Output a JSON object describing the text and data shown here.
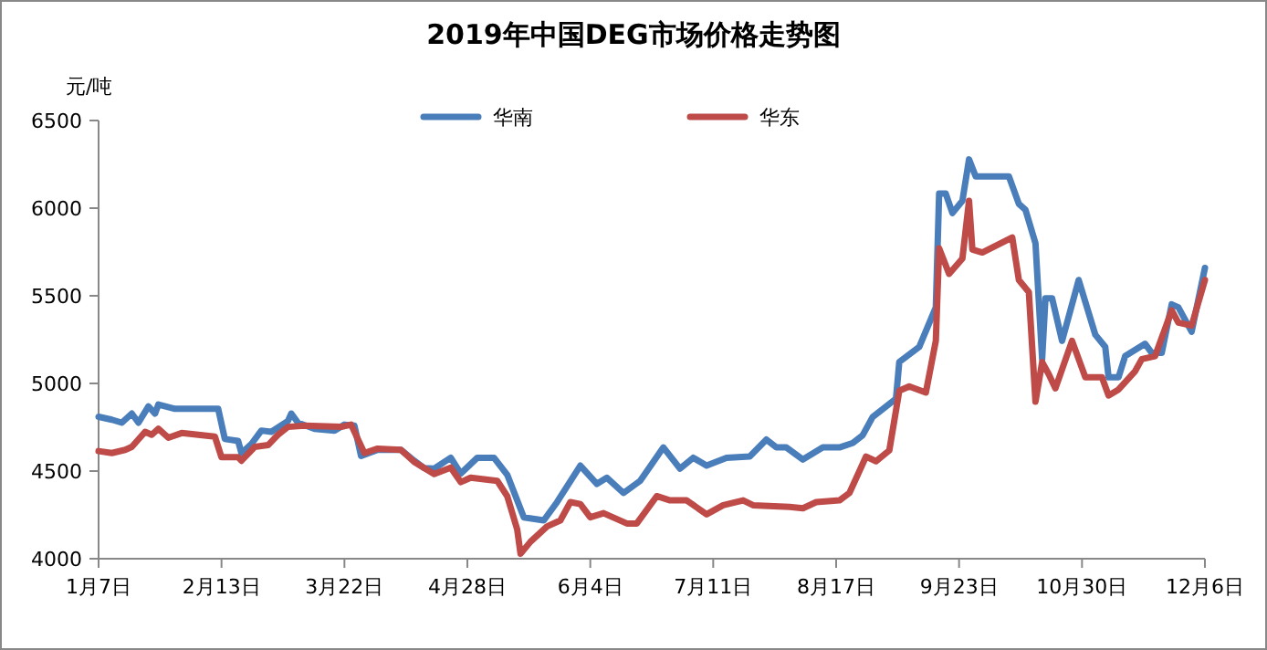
{
  "chart_data": {
    "type": "line",
    "title": "2019年中国DEG市场价格走势图",
    "ylabel": "元/吨",
    "legend": "top",
    "grid": false,
    "marker": "none",
    "line_style": "solid",
    "xlim": [
      "--01-07",
      "--12-06"
    ],
    "xticks": [
      {
        "value": "--01-07",
        "label": "1月7日"
      },
      {
        "value": "--02-13",
        "label": "2月13日"
      },
      {
        "value": "--03-22",
        "label": "3月22日"
      },
      {
        "value": "--04-28",
        "label": "4月28日"
      },
      {
        "value": "--06-04",
        "label": "6月4日"
      },
      {
        "value": "--07-11",
        "label": "7月11日"
      },
      {
        "value": "--08-17",
        "label": "8月17日"
      },
      {
        "value": "--09-23",
        "label": "9月23日"
      },
      {
        "value": "--10-30",
        "label": "10月30日"
      },
      {
        "value": "--12-06",
        "label": "12月6日"
      }
    ],
    "ylim": [
      4000,
      6500
    ],
    "yticks": [
      4000,
      4500,
      5000,
      5500,
      6000,
      6500
    ],
    "series": [
      {
        "name": "华南",
        "color": "#4a7ebb",
        "x": [
          "--01-07",
          "--01-11",
          "--01-14",
          "--01-17",
          "--01-19",
          "--01-22",
          "--01-24",
          "--01-25",
          "--01-30",
          "--02-12",
          "--02-14",
          "--02-18",
          "--02-19",
          "--02-22",
          "--02-25",
          "--02-28",
          "--03-05",
          "--03-06",
          "--03-08",
          "--03-13",
          "--03-19",
          "--03-22",
          "--03-25",
          "--03-27",
          "--04-01",
          "--04-08",
          "--04-12",
          "--04-15",
          "--04-18",
          "--04-23",
          "--04-26",
          "--05-01",
          "--05-06",
          "--05-10",
          "--05-15",
          "--05-21",
          "--05-25",
          "--06-01",
          "--06-06",
          "--06-09",
          "--06-14",
          "--06-19",
          "--06-26",
          "--07-01",
          "--07-05",
          "--07-09",
          "--07-15",
          "--07-22",
          "--07-27",
          "--07-30",
          "--08-02",
          "--08-07",
          "--08-13",
          "--08-18",
          "--08-22",
          "--08-25",
          "--08-28",
          "--09-04",
          "--09-05",
          "--09-11",
          "--09-16",
          "--09-17",
          "--09-19",
          "--09-21",
          "--09-24",
          "--09-26",
          "--09-28",
          "--10-08",
          "--10-11",
          "--10-13",
          "--10-16",
          "--10-18",
          "--10-19",
          "--10-21",
          "--10-24",
          "--10-29",
          "--11-03",
          "--11-06",
          "--11-07",
          "--11-10",
          "--11-12",
          "--11-18",
          "--11-20",
          "--11-23",
          "--11-26",
          "--11-28",
          "--12-01",
          "--12-02",
          "--12-06"
        ],
        "values": [
          4810,
          4793,
          4776,
          4828,
          4776,
          4869,
          4828,
          4880,
          4855,
          4855,
          4683,
          4672,
          4603,
          4655,
          4731,
          4724,
          4786,
          4828,
          4776,
          4741,
          4731,
          4765,
          4759,
          4586,
          4621,
          4621,
          4559,
          4517,
          4514,
          4576,
          4486,
          4576,
          4576,
          4479,
          4236,
          4219,
          4323,
          4531,
          4427,
          4462,
          4375,
          4444,
          4635,
          4514,
          4576,
          4531,
          4576,
          4583,
          4680,
          4635,
          4635,
          4566,
          4635,
          4635,
          4660,
          4705,
          4809,
          4913,
          5122,
          5208,
          5434,
          6083,
          6083,
          5972,
          6042,
          6278,
          6181,
          6181,
          6024,
          5990,
          5799,
          5139,
          5486,
          5486,
          5243,
          5590,
          5278,
          5208,
          5035,
          5035,
          5156,
          5226,
          5174,
          5174,
          5451,
          5434,
          5330,
          5295,
          5659
        ]
      },
      {
        "name": "华东",
        "color": "#be4b48",
        "x": [
          "--01-07",
          "--01-11",
          "--01-15",
          "--01-17",
          "--01-21",
          "--01-23",
          "--01-25",
          "--01-28",
          "--02-01",
          "--02-11",
          "--02-13",
          "--02-18",
          "--02-19",
          "--02-23",
          "--02-27",
          "--03-02",
          "--03-05",
          "--03-10",
          "--03-21",
          "--03-24",
          "--03-28",
          "--04-01",
          "--04-08",
          "--04-12",
          "--04-18",
          "--04-23",
          "--04-26",
          "--04-29",
          "--05-07",
          "--05-10",
          "--05-13",
          "--05-14",
          "--05-17",
          "--05-22",
          "--05-26",
          "--05-29",
          "--06-01",
          "--06-04",
          "--06-08",
          "--06-15",
          "--06-18",
          "--06-24",
          "--06-28",
          "--07-03",
          "--07-09",
          "--07-14",
          "--07-20",
          "--07-23",
          "--08-03",
          "--08-07",
          "--08-11",
          "--08-18",
          "--08-21",
          "--08-26",
          "--08-29",
          "--09-02",
          "--09-05",
          "--09-08",
          "--09-13",
          "--09-16",
          "--09-17",
          "--09-20",
          "--09-24",
          "--09-26",
          "--09-27",
          "--09-30",
          "--10-09",
          "--10-11",
          "--10-14",
          "--10-16",
          "--10-18",
          "--10-20",
          "--10-22",
          "--10-27",
          "--10-31",
          "--11-05",
          "--11-07",
          "--11-10",
          "--11-15",
          "--11-17",
          "--11-21",
          "--11-26",
          "--11-28",
          "--12-02",
          "--12-06"
        ],
        "values": [
          4614,
          4603,
          4621,
          4638,
          4724,
          4707,
          4741,
          4690,
          4717,
          4697,
          4579,
          4579,
          4559,
          4638,
          4648,
          4707,
          4752,
          4759,
          4752,
          4765,
          4603,
          4628,
          4621,
          4552,
          4483,
          4520,
          4437,
          4462,
          4444,
          4357,
          4167,
          4028,
          4097,
          4184,
          4219,
          4323,
          4312,
          4236,
          4260,
          4201,
          4201,
          4357,
          4333,
          4333,
          4253,
          4305,
          4333,
          4305,
          4295,
          4288,
          4323,
          4333,
          4375,
          4583,
          4556,
          4618,
          4958,
          4983,
          4948,
          5243,
          5771,
          5625,
          5712,
          6042,
          5764,
          5747,
          5833,
          5590,
          5521,
          4896,
          5122,
          5052,
          4972,
          5243,
          5035,
          5035,
          4931,
          4965,
          5070,
          5139,
          5156,
          5417,
          5347,
          5330,
          5590
        ]
      }
    ]
  }
}
